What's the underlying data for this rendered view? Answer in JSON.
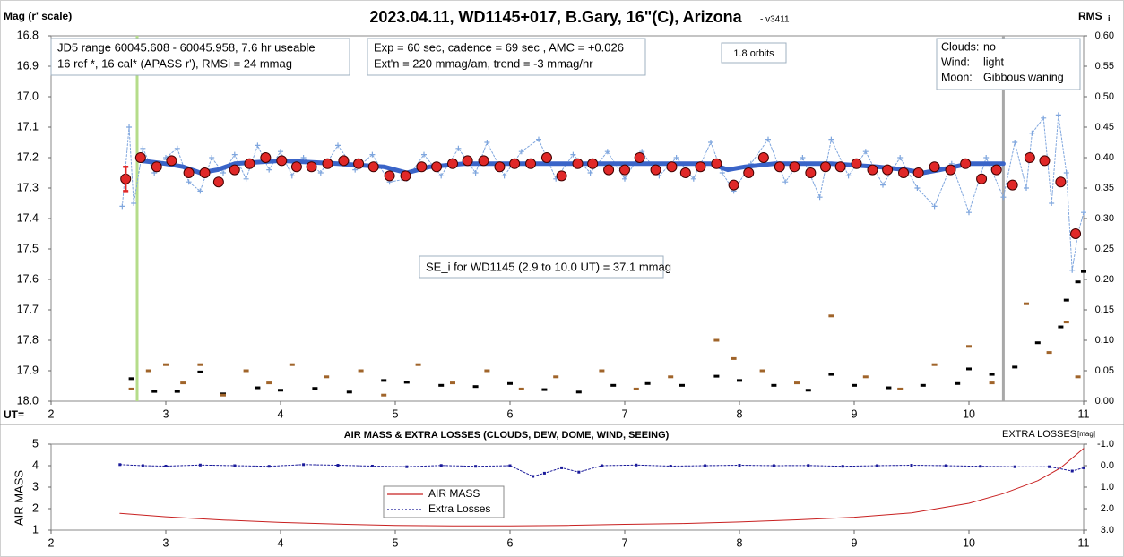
{
  "chart_data": [
    {
      "type": "scatter",
      "title": "2023.04.11, WD1145+017, B.Gary, 16\"(C), Arizona",
      "subtitle": "- v3411",
      "ylabel": "Mag (r' scale)",
      "y2label": "RMS",
      "y2label_sub": "i",
      "xlabel": "UT=",
      "xlim": [
        2,
        11
      ],
      "xticks": [
        2,
        3,
        4,
        5,
        6,
        7,
        8,
        9,
        10,
        11
      ],
      "ylim": [
        18.0,
        16.8
      ],
      "yticks": [
        16.8,
        16.9,
        {
          "value": 17,
          "label": "17.0"
        },
        17.1,
        17.2,
        17.3,
        17.4,
        17.5,
        17.6,
        17.7,
        17.8,
        17.9,
        {
          "value": 18,
          "label": "18.0"
        }
      ],
      "y2lim": [
        0,
        0.6
      ],
      "y2ticks": [
        {
          "value": 0.6,
          "label": "0.60"
        },
        {
          "value": 0.55,
          "label": "0.55"
        },
        {
          "value": 0.5,
          "label": "0.50"
        },
        {
          "value": 0.45,
          "label": "0.45"
        },
        {
          "value": 0.4,
          "label": "0.40"
        },
        {
          "value": 0.35,
          "label": "0.35"
        },
        {
          "value": 0.3,
          "label": "0.30"
        },
        {
          "value": 0.25,
          "label": "0.25"
        },
        {
          "value": 0.2,
          "label": "0.20"
        },
        {
          "value": 0.15,
          "label": "0.15"
        },
        {
          "value": 0.1,
          "label": "0.10"
        },
        {
          "value": 0.05,
          "label": "0.05"
        },
        {
          "value": 0,
          "label": "0.00"
        }
      ],
      "series": [
        {
          "marker": "plus",
          "line": "dotted",
          "color": "#7fa6de",
          "x": [
            2.62,
            2.68,
            2.72,
            2.8,
            2.9,
            3.0,
            3.1,
            3.2,
            3.3,
            3.4,
            3.5,
            3.6,
            3.7,
            3.8,
            3.9,
            4.0,
            4.1,
            4.2,
            4.35,
            4.5,
            4.65,
            4.8,
            4.95,
            5.1,
            5.25,
            5.4,
            5.55,
            5.7,
            5.8,
            5.95,
            6.1,
            6.25,
            6.4,
            6.55,
            6.7,
            6.85,
            7.0,
            7.15,
            7.3,
            7.45,
            7.6,
            7.75,
            7.85,
            7.95,
            8.1,
            8.25,
            8.4,
            8.55,
            8.7,
            8.8,
            8.95,
            9.1,
            9.25,
            9.4,
            9.55,
            9.7,
            9.85,
            10.0,
            10.15,
            10.3,
            10.4,
            10.5,
            10.55,
            10.65,
            10.72,
            10.78,
            10.85,
            10.9,
            10.95,
            11.0
          ],
          "values": [
            17.36,
            17.1,
            17.35,
            17.17,
            17.25,
            17.2,
            17.17,
            17.28,
            17.31,
            17.2,
            17.25,
            17.19,
            17.27,
            17.16,
            17.24,
            17.18,
            17.26,
            17.2,
            17.25,
            17.16,
            17.24,
            17.19,
            17.28,
            17.27,
            17.19,
            17.26,
            17.17,
            17.25,
            17.15,
            17.26,
            17.18,
            17.14,
            17.27,
            17.19,
            17.25,
            17.18,
            17.27,
            17.18,
            17.26,
            17.2,
            17.27,
            17.15,
            17.25,
            17.31,
            17.22,
            17.14,
            17.28,
            17.2,
            17.33,
            17.14,
            17.26,
            17.18,
            17.29,
            17.2,
            17.3,
            17.36,
            17.22,
            17.38,
            17.2,
            17.33,
            17.15,
            17.3,
            17.12,
            17.07,
            17.35,
            17.06,
            17.25,
            17.57,
            17.45,
            17.38
          ]
        },
        {
          "marker": "line",
          "color": "#3a64c8",
          "width": 5,
          "x": [
            2.78,
            3.0,
            3.15,
            3.3,
            3.45,
            3.6,
            4.0,
            4.5,
            4.9,
            5.1,
            5.3,
            5.6,
            6.0,
            6.5,
            7.0,
            7.5,
            7.75,
            7.9,
            8.05,
            8.3,
            8.8,
            9.2,
            9.45,
            9.6,
            9.75,
            10.0,
            10.3
          ],
          "values": [
            17.21,
            17.22,
            17.23,
            17.25,
            17.24,
            17.22,
            17.21,
            17.22,
            17.23,
            17.25,
            17.23,
            17.22,
            17.22,
            17.22,
            17.22,
            17.22,
            17.22,
            17.24,
            17.23,
            17.22,
            17.22,
            17.23,
            17.24,
            17.25,
            17.24,
            17.22,
            17.22
          ]
        },
        {
          "marker": "circle",
          "color": "#e02828",
          "edgecolor": "#400000",
          "x": [
            2.65,
            2.78,
            2.92,
            3.05,
            3.2,
            3.34,
            3.46,
            3.6,
            3.73,
            3.87,
            4.01,
            4.14,
            4.27,
            4.41,
            4.55,
            4.68,
            4.81,
            4.95,
            5.09,
            5.23,
            5.36,
            5.5,
            5.63,
            5.77,
            5.91,
            6.04,
            6.18,
            6.32,
            6.45,
            6.59,
            6.72,
            6.86,
            7.0,
            7.13,
            7.27,
            7.41,
            7.53,
            7.66,
            7.8,
            7.95,
            8.08,
            8.21,
            8.35,
            8.48,
            8.62,
            8.75,
            8.88,
            9.02,
            9.16,
            9.29,
            9.43,
            9.56,
            9.7,
            9.84,
            9.97,
            10.11,
            10.24,
            10.38,
            10.53,
            10.66,
            10.8,
            10.93
          ],
          "values": [
            17.27,
            17.2,
            17.23,
            17.21,
            17.25,
            17.25,
            17.28,
            17.24,
            17.22,
            17.2,
            17.21,
            17.23,
            17.23,
            17.22,
            17.21,
            17.22,
            17.23,
            17.26,
            17.26,
            17.23,
            17.23,
            17.22,
            17.21,
            17.21,
            17.23,
            17.22,
            17.22,
            17.2,
            17.26,
            17.22,
            17.22,
            17.24,
            17.24,
            17.2,
            17.24,
            17.23,
            17.25,
            17.23,
            17.22,
            17.29,
            17.25,
            17.2,
            17.23,
            17.23,
            17.25,
            17.23,
            17.23,
            17.22,
            17.24,
            17.24,
            17.25,
            17.25,
            17.23,
            17.24,
            17.22,
            17.27,
            17.24,
            17.29,
            17.2,
            17.21,
            17.28,
            17.45
          ]
        },
        {
          "marker": "dash",
          "axis": "y2",
          "color": "#000000",
          "x": [
            2.7,
            2.9,
            3.1,
            3.3,
            3.5,
            3.8,
            4.0,
            4.3,
            4.6,
            4.9,
            5.1,
            5.4,
            5.7,
            6.0,
            6.3,
            6.6,
            6.9,
            7.2,
            7.5,
            7.8,
            8.0,
            8.3,
            8.6,
            8.8,
            9.0,
            9.3,
            9.6,
            9.9,
            10.0,
            10.2,
            10.4,
            10.6,
            10.8,
            10.85,
            10.95,
            11.0
          ],
          "values": [
            0.037,
            0.016,
            0.016,
            0.048,
            0.012,
            0.022,
            0.018,
            0.021,
            0.015,
            0.034,
            0.031,
            0.026,
            0.024,
            0.029,
            0.019,
            0.015,
            0.026,
            0.029,
            0.026,
            0.041,
            0.034,
            0.026,
            0.018,
            0.044,
            0.026,
            0.022,
            0.026,
            0.029,
            0.053,
            0.044,
            0.056,
            0.096,
            0.122,
            0.166,
            0.196,
            0.213
          ]
        },
        {
          "marker": "dash",
          "axis": "y2",
          "color": "#a0642a",
          "x": [
            2.7,
            2.85,
            3.0,
            3.15,
            3.3,
            3.5,
            3.7,
            3.9,
            4.1,
            4.4,
            4.7,
            4.9,
            5.2,
            5.5,
            5.8,
            6.1,
            6.4,
            6.8,
            7.1,
            7.4,
            7.8,
            7.95,
            8.2,
            8.5,
            8.8,
            9.1,
            9.4,
            9.7,
            10.0,
            10.2,
            10.5,
            10.7,
            10.85,
            10.95
          ],
          "values": [
            0.02,
            0.05,
            0.06,
            0.03,
            0.06,
            0.01,
            0.05,
            0.03,
            0.06,
            0.04,
            0.05,
            0.01,
            0.06,
            0.03,
            0.05,
            0.02,
            0.04,
            0.05,
            0.02,
            0.04,
            0.1,
            0.07,
            0.05,
            0.03,
            0.14,
            0.04,
            0.02,
            0.06,
            0.09,
            0.03,
            0.16,
            0.08,
            0.13,
            0.04
          ]
        }
      ],
      "error_bars": [
        {
          "x": 2.65,
          "value": 17.27,
          "error": 0.04,
          "color": "#e02828"
        }
      ],
      "vlines": [
        {
          "x": 2.75,
          "color": "#b5dc8a"
        },
        {
          "x": 10.3,
          "color": "#a8a8a8"
        }
      ],
      "annotations": [
        {
          "lines": [
            "JD5 range 60045.608 - 60045.958, 7.6 hr useable",
            "16 ref *, 16 cal*  (APASS r'), RMSi = 24 mmag"
          ]
        },
        {
          "lines": [
            "Exp = 60 sec, cadence = 69 sec , AMC = +0.026",
            "Ext'n = 220 mmag/am, trend = -3 mmag/hr"
          ]
        },
        {
          "lines": [
            "1.8 orbits"
          ]
        },
        {
          "pairs": [
            {
              "label": "Clouds:",
              "value": "no"
            },
            {
              "label": "Wind:",
              "value": "light"
            },
            {
              "label": "Moon:",
              "value": "Gibbous waning"
            }
          ]
        },
        {
          "lines": [
            "SE_i for WD1145 (2.9 to 10.0 UT) = 37.1 mmag"
          ]
        }
      ]
    },
    {
      "type": "line",
      "title": "AIR MASS & EXTRA LOSSES (CLOUDS, DEW, DOME, WIND, SEEING)",
      "ylabel": "AIR MASS",
      "y2label": "EXTRA LOSSES",
      "y2label_sub": "[mag]",
      "xlim": [
        2,
        11
      ],
      "xticks": [
        2,
        3,
        4,
        5,
        6,
        7,
        8,
        9,
        10,
        11
      ],
      "ylim": [
        1,
        5
      ],
      "yticks": [
        1,
        2,
        3,
        4,
        5
      ],
      "y2lim": [
        3,
        -1
      ],
      "y2ticks": [
        {
          "value": -1,
          "label": "-1.0"
        },
        {
          "value": 0,
          "label": "0.0"
        },
        {
          "value": 1,
          "label": "1.0"
        },
        {
          "value": 2,
          "label": "2.0"
        },
        {
          "value": 3,
          "label": "3.0"
        }
      ],
      "legend": "lower-center",
      "series": [
        {
          "name": "AIR MASS",
          "marker": "line",
          "color": "#c82020",
          "width": 1,
          "x": [
            2.6,
            3.0,
            3.5,
            4.0,
            4.5,
            5.0,
            5.5,
            6.0,
            6.5,
            7.0,
            7.5,
            8.0,
            8.5,
            9.0,
            9.5,
            10.0,
            10.3,
            10.6,
            10.8,
            11.0
          ],
          "values": [
            1.78,
            1.62,
            1.47,
            1.36,
            1.28,
            1.22,
            1.2,
            1.2,
            1.22,
            1.27,
            1.31,
            1.38,
            1.48,
            1.6,
            1.8,
            2.25,
            2.7,
            3.3,
            3.9,
            4.8
          ]
        },
        {
          "name": "Extra Losses",
          "marker": "dotted-square",
          "axis": "y2",
          "color": "#1a1a9a",
          "x": [
            2.6,
            2.8,
            3.0,
            3.3,
            3.6,
            3.9,
            4.2,
            4.5,
            4.8,
            5.1,
            5.4,
            5.7,
            6.0,
            6.2,
            6.3,
            6.45,
            6.6,
            6.8,
            7.1,
            7.4,
            7.7,
            8.0,
            8.3,
            8.6,
            8.9,
            9.2,
            9.5,
            9.8,
            10.1,
            10.4,
            10.7,
            10.9,
            11.0
          ],
          "values": [
            -0.05,
            0.0,
            0.02,
            -0.03,
            0.0,
            0.03,
            -0.05,
            -0.02,
            0.02,
            0.05,
            -0.01,
            0.03,
            0.0,
            0.5,
            0.35,
            0.1,
            0.3,
            0.0,
            -0.03,
            0.02,
            0.0,
            -0.02,
            0.0,
            -0.01,
            0.03,
            0.0,
            -0.02,
            0.0,
            0.03,
            0.05,
            0.05,
            0.25,
            0.1
          ]
        }
      ]
    }
  ]
}
